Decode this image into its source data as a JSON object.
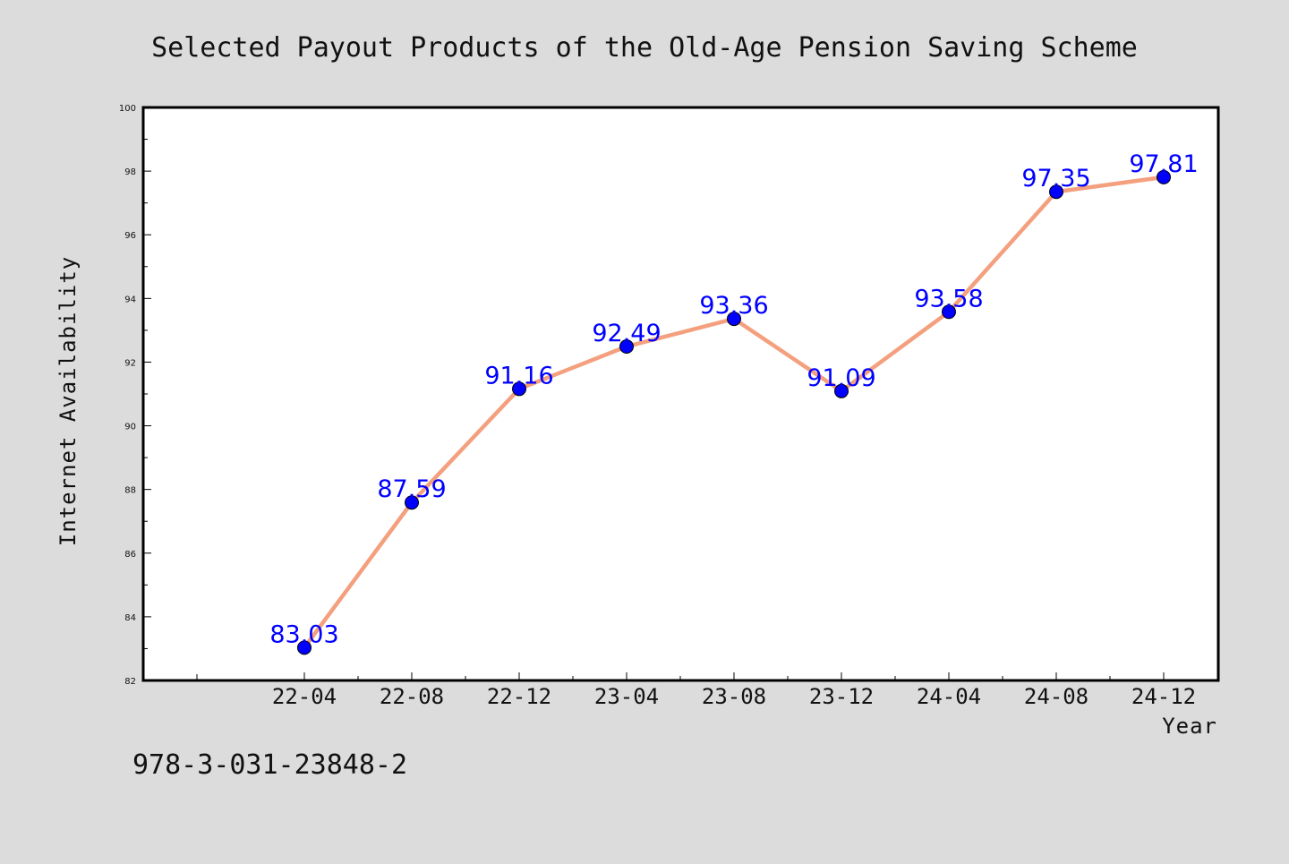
{
  "chart_data": {
    "type": "line",
    "title": "Selected Payout Products of the Old-Age Pension Saving Scheme",
    "xlabel": "Year",
    "ylabel": "Internet Availability",
    "x": [
      "22-04",
      "22-08",
      "22-12",
      "23-04",
      "23-08",
      "23-12",
      "24-04",
      "24-08",
      "24-12"
    ],
    "values": [
      83.03,
      87.59,
      91.16,
      92.49,
      93.36,
      91.09,
      93.58,
      97.35,
      97.81
    ],
    "data_labels": [
      "83.03",
      "87.59",
      "91.16",
      "92.49",
      "93.36",
      "91.09",
      "93.58",
      "97.35",
      "97.81"
    ],
    "ylim": [
      82,
      100
    ],
    "y_ticks": [
      82,
      84,
      86,
      88,
      90,
      92,
      94,
      96,
      98,
      100
    ],
    "grid": false,
    "legend": "none",
    "line_color": "#f4a07e",
    "marker_color": "#0000ff",
    "label_color": "#0000ff"
  },
  "footer": {
    "isbn": "978-3-031-23848-2"
  },
  "colors": {
    "background": "#dcdcdc",
    "plot_background": "#ffffff",
    "axis": "#000000"
  }
}
